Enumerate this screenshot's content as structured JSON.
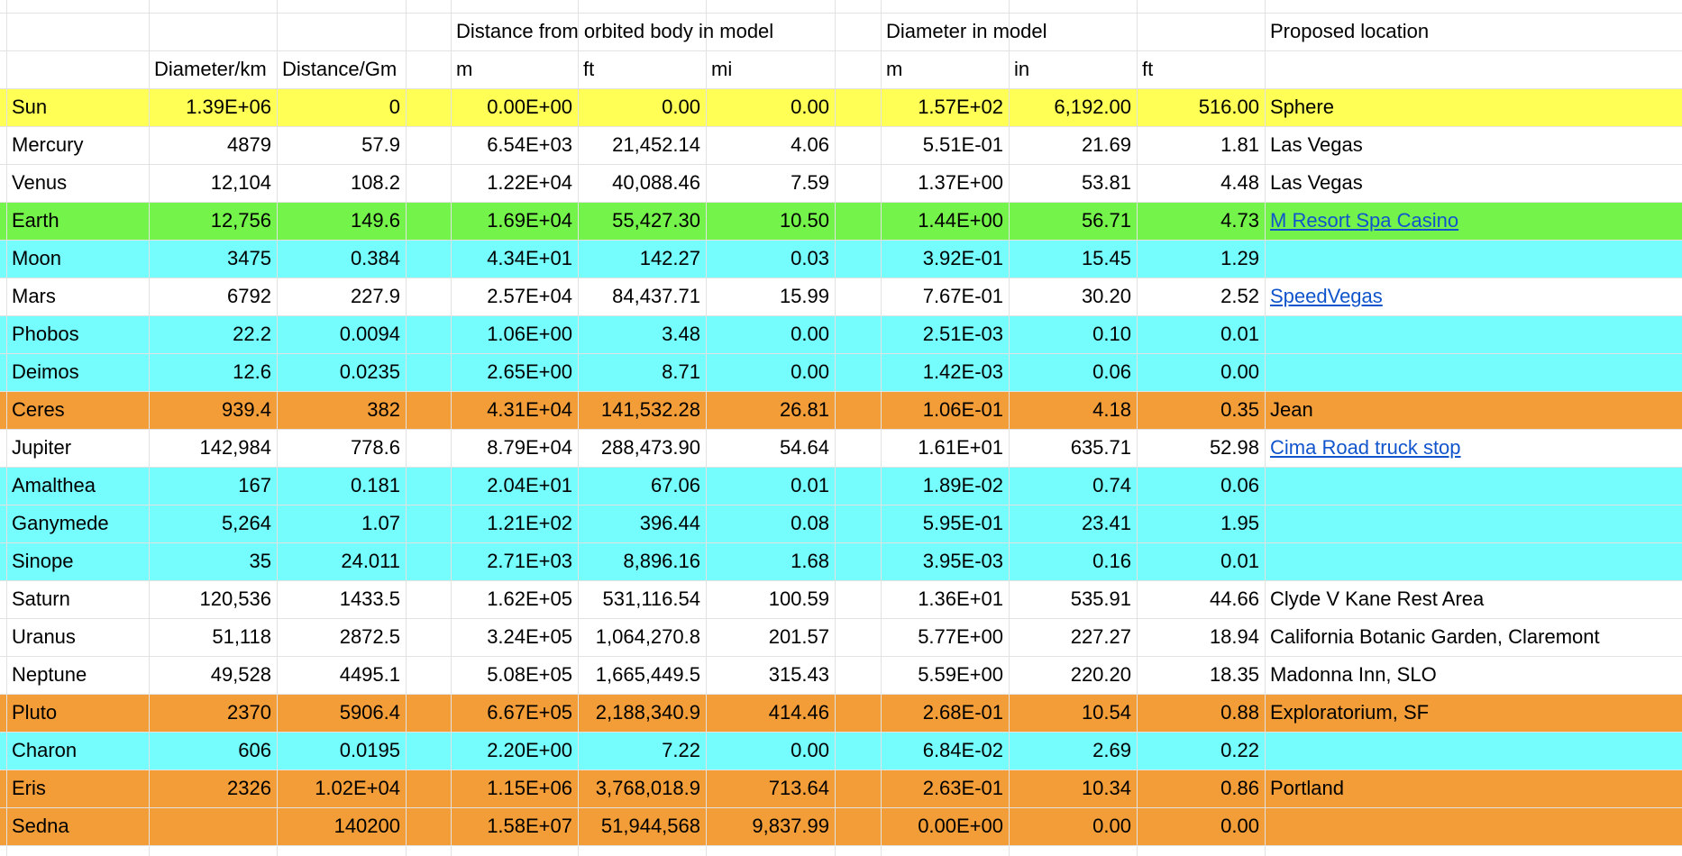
{
  "table": {
    "group_header": [
      null,
      null,
      null,
      null,
      "Distance from orbited body in model",
      null,
      null,
      null,
      "Diameter in model",
      null,
      null,
      "Proposed location"
    ],
    "sub_header": [
      null,
      "Diameter/km",
      "Distance/Gm",
      null,
      "m",
      "ft",
      "mi",
      null,
      "m",
      "in",
      "ft",
      null
    ],
    "rows": [
      {
        "color": "#ffff55",
        "cells": [
          "Sun",
          "1.39E+06",
          "0",
          null,
          "0.00E+00",
          "0.00",
          "0.00",
          null,
          "1.57E+02",
          "6,192.00",
          "516.00",
          "Sphere"
        ]
      },
      {
        "color": "#ffffff",
        "cells": [
          "Mercury",
          "4879",
          "57.9",
          null,
          "6.54E+03",
          "21,452.14",
          "4.06",
          null,
          "5.51E-01",
          "21.69",
          "1.81",
          "Las Vegas"
        ]
      },
      {
        "color": "#ffffff",
        "cells": [
          "Venus",
          "12,104",
          "108.2",
          null,
          "1.22E+04",
          "40,088.46",
          "7.59",
          null,
          "1.37E+00",
          "53.81",
          "4.48",
          "Las Vegas"
        ]
      },
      {
        "color": "#74f34b",
        "link": true,
        "cells": [
          "Earth",
          "12,756",
          "149.6",
          null,
          "1.69E+04",
          "55,427.30",
          "10.50",
          null,
          "1.44E+00",
          "56.71",
          "4.73",
          "M Resort Spa Casino"
        ]
      },
      {
        "color": "#75fcfd",
        "cells": [
          "Moon",
          "3475",
          "0.384",
          null,
          "4.34E+01",
          "142.27",
          "0.03",
          null,
          "3.92E-01",
          "15.45",
          "1.29",
          null
        ]
      },
      {
        "color": "#ffffff",
        "link": true,
        "cells": [
          "Mars",
          "6792",
          "227.9",
          null,
          "2.57E+04",
          "84,437.71",
          "15.99",
          null,
          "7.67E-01",
          "30.20",
          "2.52",
          "SpeedVegas"
        ]
      },
      {
        "color": "#75fcfd",
        "cells": [
          "Phobos",
          "22.2",
          "0.0094",
          null,
          "1.06E+00",
          "3.48",
          "0.00",
          null,
          "2.51E-03",
          "0.10",
          "0.01",
          null
        ]
      },
      {
        "color": "#75fcfd",
        "cells": [
          "Deimos",
          "12.6",
          "0.0235",
          null,
          "2.65E+00",
          "8.71",
          "0.00",
          null,
          "1.42E-03",
          "0.06",
          "0.00",
          null
        ]
      },
      {
        "color": "#f29d38",
        "cells": [
          "Ceres",
          "939.4",
          "382",
          null,
          "4.31E+04",
          "141,532.28",
          "26.81",
          null,
          "1.06E-01",
          "4.18",
          "0.35",
          "Jean"
        ]
      },
      {
        "color": "#ffffff",
        "link": true,
        "cells": [
          "Jupiter",
          "142,984",
          "778.6",
          null,
          "8.79E+04",
          "288,473.90",
          "54.64",
          null,
          "1.61E+01",
          "635.71",
          "52.98",
          "Cima Road truck stop"
        ]
      },
      {
        "color": "#75fcfd",
        "cells": [
          "Amalthea",
          "167",
          "0.181",
          null,
          "2.04E+01",
          "67.06",
          "0.01",
          null,
          "1.89E-02",
          "0.74",
          "0.06",
          null
        ]
      },
      {
        "color": "#75fcfd",
        "cells": [
          "Ganymede",
          "5,264",
          "1.07",
          null,
          "1.21E+02",
          "396.44",
          "0.08",
          null,
          "5.95E-01",
          "23.41",
          "1.95",
          null
        ]
      },
      {
        "color": "#75fcfd",
        "cells": [
          "Sinope",
          "35",
          "24.011",
          null,
          "2.71E+03",
          "8,896.16",
          "1.68",
          null,
          "3.95E-03",
          "0.16",
          "0.01",
          null
        ]
      },
      {
        "color": "#ffffff",
        "cells": [
          "Saturn",
          "120,536",
          "1433.5",
          null,
          "1.62E+05",
          "531,116.54",
          "100.59",
          null,
          "1.36E+01",
          "535.91",
          "44.66",
          "Clyde V Kane Rest Area"
        ]
      },
      {
        "color": "#ffffff",
        "cells": [
          "Uranus",
          "51,118",
          "2872.5",
          null,
          "3.24E+05",
          "1,064,270.8",
          "201.57",
          null,
          "5.77E+00",
          "227.27",
          "18.94",
          "California Botanic Garden, Claremont"
        ]
      },
      {
        "color": "#ffffff",
        "cells": [
          "Neptune",
          "49,528",
          "4495.1",
          null,
          "5.08E+05",
          "1,665,449.5",
          "315.43",
          null,
          "5.59E+00",
          "220.20",
          "18.35",
          "Madonna Inn, SLO"
        ]
      },
      {
        "color": "#f29d38",
        "cells": [
          "Pluto",
          "2370",
          "5906.4",
          null,
          "6.67E+05",
          "2,188,340.9",
          "414.46",
          null,
          "2.68E-01",
          "10.54",
          "0.88",
          "Exploratorium, SF"
        ]
      },
      {
        "color": "#75fcfd",
        "cells": [
          "Charon",
          "606",
          "0.0195",
          null,
          "2.20E+00",
          "7.22",
          "0.00",
          null,
          "6.84E-02",
          "2.69",
          "0.22",
          null
        ]
      },
      {
        "color": "#f29d38",
        "cells": [
          "Eris",
          "2326",
          "1.02E+04",
          null,
          "1.15E+06",
          "3,768,018.9",
          "713.64",
          null,
          "2.63E-01",
          "10.34",
          "0.86",
          "Portland"
        ]
      },
      {
        "color": "#f29d38",
        "cells": [
          "Sedna",
          null,
          "140200",
          null,
          "1.58E+07",
          "51,944,568",
          "9,837.99",
          null,
          "0.00E+00",
          "0.00",
          "0.00",
          null
        ]
      }
    ]
  }
}
